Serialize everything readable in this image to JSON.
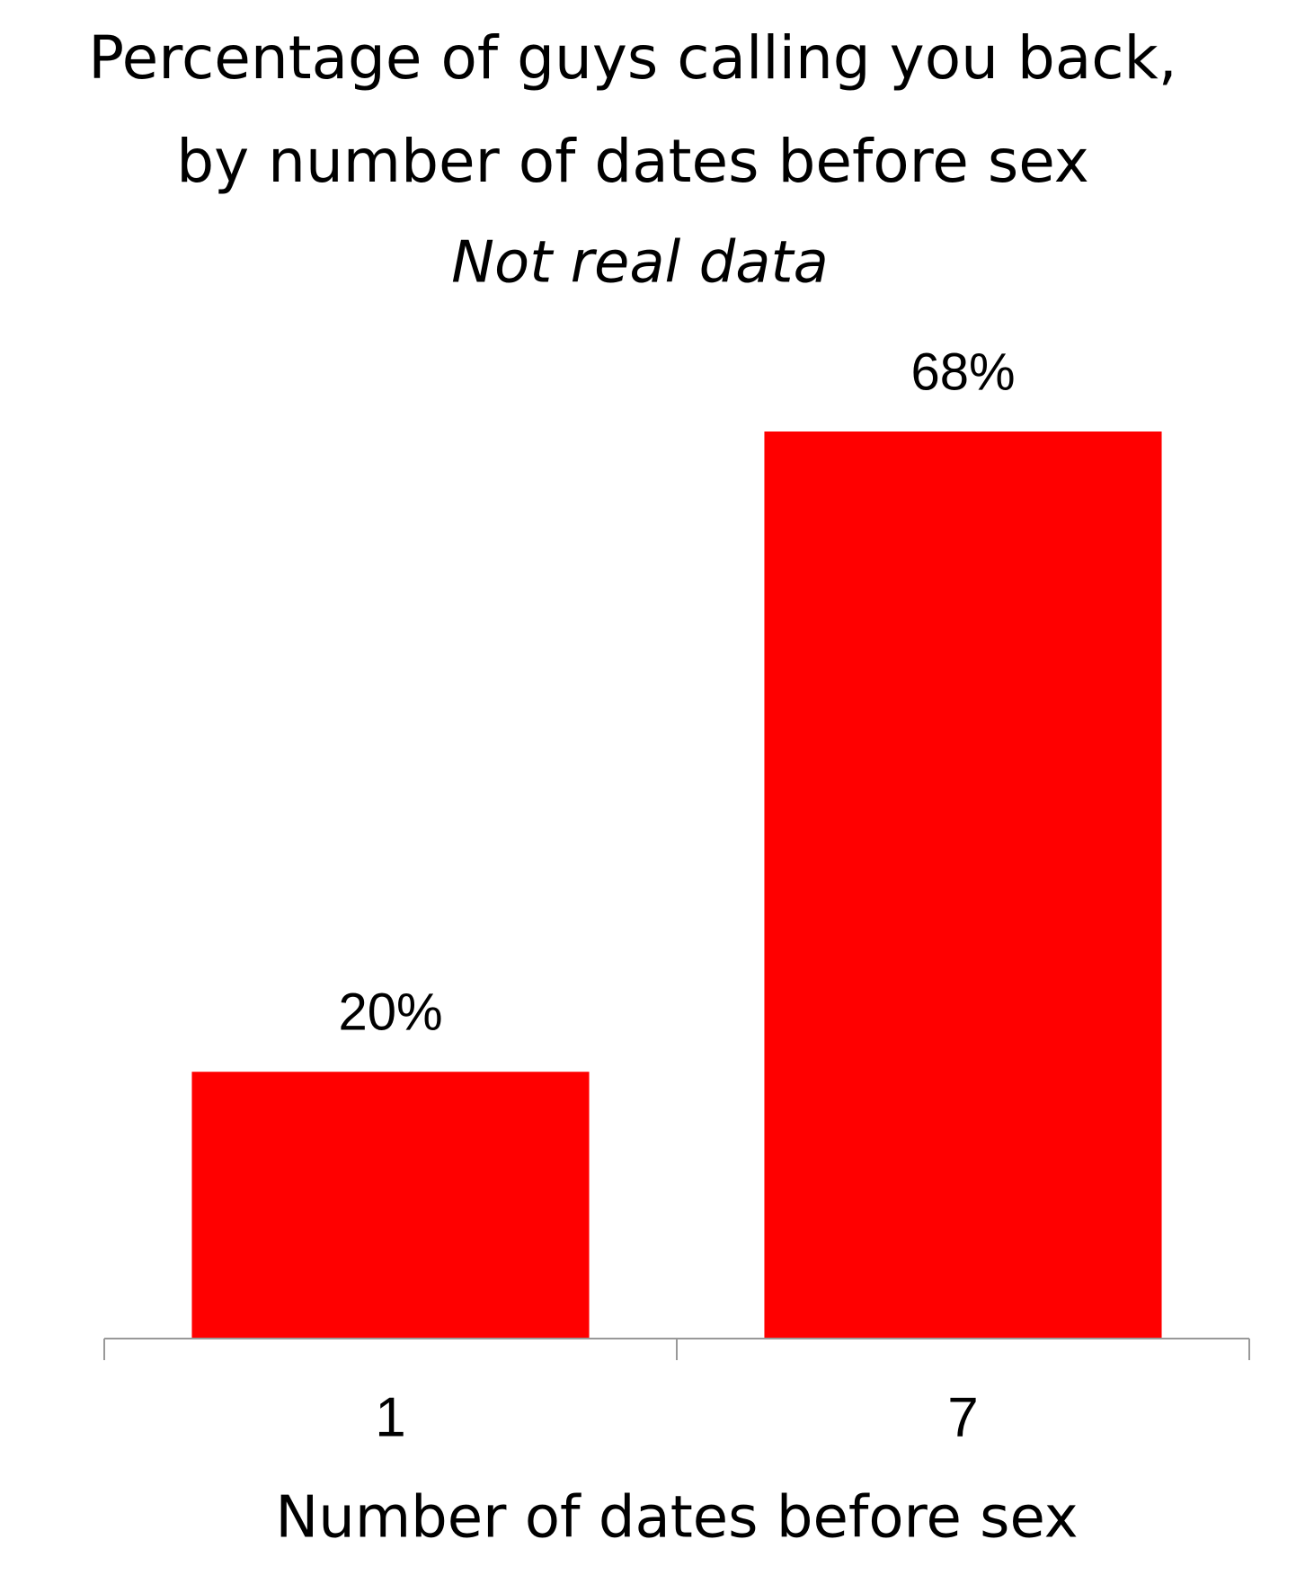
{
  "chart_data": {
    "type": "bar",
    "title": [
      "Percentage of guys calling you back,",
      "by number of dates before sex"
    ],
    "subtitle": "Not real data",
    "x_label": "Number of dates before sex",
    "categories": [
      "1",
      "7"
    ],
    "values": [
      20,
      68
    ],
    "value_labels": [
      "20%",
      "68%"
    ],
    "color": "#ff0000",
    "ylim": [
      0,
      68
    ],
    "grid": false
  }
}
